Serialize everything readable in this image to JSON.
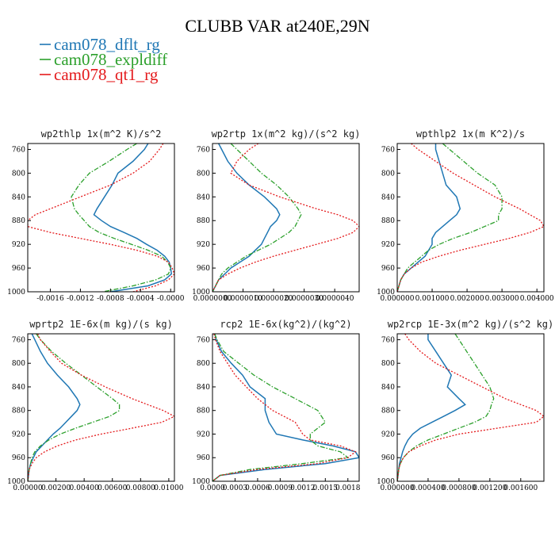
{
  "figure": {
    "title": "CLUBB VAR at240E,29N"
  },
  "legend": [
    {
      "label": "cam078_dflt_rg",
      "color": "#1f77b4",
      "dash": "solid"
    },
    {
      "label": "cam078_expldiff",
      "color": "#2ca02c",
      "dash": "dashdot"
    },
    {
      "label": "cam078_qt1_rg",
      "color": "#e41a1c",
      "dash": "dotted"
    }
  ],
  "chart_data": [
    {
      "type": "line",
      "title": "wp2thlp  1x(m^2 K)/s^2",
      "ylim": [
        1000,
        750
      ],
      "xlim": [
        -0.0019,
        5e-05
      ],
      "yticks": [
        760,
        800,
        840,
        880,
        920,
        960,
        1000
      ],
      "xticks": [
        -0.0016,
        -0.0012,
        -0.0008,
        -0.0004,
        0.0
      ],
      "xtick_labels": [
        "-0.0016",
        "-0.0012",
        "-0.0008",
        "-0.0004",
        "-0.0000"
      ],
      "y": [
        750,
        760,
        780,
        800,
        820,
        840,
        860,
        870,
        880,
        890,
        900,
        910,
        920,
        930,
        940,
        950,
        960,
        970,
        980,
        990,
        1000
      ],
      "series": [
        {
          "name": "cam078_dflt_rg",
          "values": [
            -0.0003,
            -0.00035,
            -0.0005,
            -0.0007,
            -0.00078,
            -0.00088,
            -0.00098,
            -0.00102,
            -0.00092,
            -0.0008,
            -0.00062,
            -0.00045,
            -0.00032,
            -0.00018,
            -8e-05,
            -2e-05,
            0.0,
            1e-05,
            -8e-05,
            -0.0003,
            -0.0008
          ]
        },
        {
          "name": "cam078_expldiff",
          "values": [
            -0.00045,
            -0.00058,
            -0.00082,
            -0.00108,
            -0.00122,
            -0.00132,
            -0.00128,
            -0.00122,
            -0.00115,
            -0.00108,
            -0.00095,
            -0.00075,
            -0.00052,
            -0.0003,
            -0.00012,
            -4e-05,
            0.0,
            -3e-05,
            -0.0002,
            -0.0005,
            -0.0009
          ]
        },
        {
          "name": "cam078_qt1_rg",
          "values": [
            -0.0001,
            -0.00015,
            -0.00028,
            -0.0005,
            -0.0008,
            -0.0012,
            -0.0016,
            -0.0018,
            -0.0019,
            -0.0019,
            -0.0016,
            -0.0012,
            -0.0008,
            -0.00045,
            -0.00018,
            -3e-05,
            2e-05,
            5e-05,
            -3e-05,
            -0.0002,
            -0.0005
          ]
        }
      ]
    },
    {
      "type": "line",
      "title": "wp2rtp  1x(m^2 kg)/(s^2 kg)",
      "ylim": [
        1000,
        750
      ],
      "xlim": [
        0.0,
        4.8e-06
      ],
      "yticks": [
        760,
        800,
        840,
        880,
        920,
        960,
        1000
      ],
      "xticks": [
        0.0,
        1e-06,
        2e-06,
        3e-06,
        4e-06
      ],
      "xtick_labels": [
        "0.0000000",
        "0.0000010",
        "0.0000020",
        "0.0000030",
        "0.0000040"
      ],
      "y": [
        750,
        760,
        780,
        800,
        820,
        840,
        860,
        870,
        880,
        890,
        900,
        910,
        920,
        930,
        940,
        950,
        960,
        970,
        980,
        990,
        1000
      ],
      "series": [
        {
          "name": "cam078_dflt_rg",
          "values": [
            2e-07,
            3e-07,
            5e-07,
            8e-07,
            1.2e-06,
            1.7e-06,
            2.1e-06,
            2.2e-06,
            2.1e-06,
            1.9e-06,
            1.8e-06,
            1.7e-06,
            1.6e-06,
            1.4e-06,
            1.2e-06,
            9e-07,
            6e-07,
            4e-07,
            2e-07,
            1e-07,
            0.0
          ]
        },
        {
          "name": "cam078_expldiff",
          "values": [
            6e-07,
            8e-07,
            1.2e-06,
            1.6e-06,
            2.1e-06,
            2.5e-06,
            2.8e-06,
            2.9e-06,
            2.8e-06,
            2.7e-06,
            2.5e-06,
            2.2e-06,
            1.9e-06,
            1.5e-06,
            1.1e-06,
            8e-07,
            5e-07,
            3e-07,
            2e-07,
            1e-07,
            0.0
          ]
        },
        {
          "name": "cam078_qt1_rg",
          "values": [
            1.5e-06,
            1.2e-06,
            8e-07,
            6e-07,
            1.2e-06,
            2.2e-06,
            3.4e-06,
            4.1e-06,
            4.6e-06,
            4.8e-06,
            4.6e-06,
            4.1e-06,
            3.4e-06,
            2.7e-06,
            2e-06,
            1.4e-06,
            9e-07,
            5e-07,
            2e-07,
            1e-07,
            0.0
          ]
        }
      ]
    },
    {
      "type": "line",
      "title": "wpthlp2  1x(m K^2)/s",
      "ylim": [
        1000,
        750
      ],
      "xlim": [
        0.0,
        0.0042
      ],
      "yticks": [
        760,
        800,
        840,
        880,
        920,
        960,
        1000
      ],
      "xticks": [
        0.0,
        0.001,
        0.002,
        0.003,
        0.004
      ],
      "xtick_labels": [
        "0.000000",
        "0.001000",
        "0.002000",
        "0.003000",
        "0.004000"
      ],
      "y": [
        750,
        760,
        780,
        800,
        820,
        840,
        860,
        870,
        880,
        890,
        900,
        910,
        920,
        930,
        940,
        950,
        960,
        970,
        980,
        990,
        1000
      ],
      "series": [
        {
          "name": "cam078_dflt_rg",
          "values": [
            0.0011,
            0.0011,
            0.0012,
            0.0013,
            0.0014,
            0.0017,
            0.0018,
            0.0017,
            0.0015,
            0.0013,
            0.0011,
            0.001,
            0.001,
            0.0009,
            0.0008,
            0.0006,
            0.0004,
            0.0002,
            0.0001,
            5e-05,
            0.0
          ]
        },
        {
          "name": "cam078_expldiff",
          "values": [
            0.0013,
            0.0015,
            0.0019,
            0.0023,
            0.0028,
            0.003,
            0.003,
            0.0029,
            0.0029,
            0.0025,
            0.0021,
            0.0016,
            0.0012,
            0.0009,
            0.0007,
            0.0005,
            0.0003,
            0.0002,
            0.0001,
            5e-05,
            0.0
          ]
        },
        {
          "name": "cam078_qt1_rg",
          "values": [
            0.0004,
            0.0006,
            0.0011,
            0.0016,
            0.0022,
            0.0028,
            0.0035,
            0.0038,
            0.0041,
            0.0042,
            0.0038,
            0.0032,
            0.0025,
            0.0018,
            0.0012,
            0.0007,
            0.0004,
            0.0002,
            0.0001,
            5e-05,
            0.0
          ]
        }
      ]
    },
    {
      "type": "line",
      "title": "wprtp2  1E-6x(m kg)/(s kg)",
      "ylim": [
        1000,
        750
      ],
      "xlim": [
        0.0,
        0.0104
      ],
      "yticks": [
        760,
        800,
        840,
        880,
        920,
        960,
        1000
      ],
      "xticks": [
        0.0,
        0.002,
        0.004,
        0.006,
        0.008,
        0.01
      ],
      "xtick_labels": [
        "0.00000",
        "0.00200",
        "0.00400",
        "0.00600",
        "0.00800",
        "0.01000"
      ],
      "y": [
        750,
        760,
        780,
        800,
        820,
        840,
        860,
        870,
        880,
        890,
        900,
        910,
        920,
        930,
        940,
        950,
        960,
        970,
        980,
        990,
        1000
      ],
      "series": [
        {
          "name": "cam078_dflt_rg",
          "values": [
            0.0003,
            0.0005,
            0.0009,
            0.0014,
            0.0021,
            0.0029,
            0.0035,
            0.0037,
            0.0035,
            0.0031,
            0.0027,
            0.0023,
            0.0018,
            0.0014,
            0.001,
            0.0006,
            0.0004,
            0.0002,
            0.0001,
            5e-05,
            0.0
          ]
        },
        {
          "name": "cam078_expldiff",
          "values": [
            0.0006,
            0.0009,
            0.0017,
            0.0027,
            0.0038,
            0.0049,
            0.006,
            0.0065,
            0.0065,
            0.0058,
            0.0046,
            0.0034,
            0.0023,
            0.0015,
            0.0009,
            0.0005,
            0.0003,
            0.0002,
            0.0001,
            5e-05,
            0.0
          ]
        },
        {
          "name": "cam078_qt1_rg",
          "values": [
            0.0007,
            0.0009,
            0.0016,
            0.0024,
            0.0038,
            0.0055,
            0.0074,
            0.0085,
            0.0096,
            0.0104,
            0.0095,
            0.0074,
            0.0052,
            0.0034,
            0.0021,
            0.0012,
            0.0006,
            0.0003,
            0.0001,
            5e-05,
            0.0
          ]
        }
      ]
    },
    {
      "type": "line",
      "title": "rcp2  1E-6x(kg^2)/(kg^2)",
      "ylim": [
        1000,
        750
      ],
      "xlim": [
        0.0,
        0.00195
      ],
      "yticks": [
        760,
        800,
        840,
        880,
        920,
        960,
        1000
      ],
      "xticks": [
        0.0,
        0.0003,
        0.0006,
        0.0009,
        0.0012,
        0.0015,
        0.0018
      ],
      "xtick_labels": [
        "0.0000",
        "0.0003",
        "0.0006",
        "0.0009",
        "0.0012",
        "0.0015",
        "0.0018"
      ],
      "y": [
        750,
        760,
        780,
        800,
        820,
        840,
        860,
        880,
        900,
        920,
        930,
        940,
        950,
        960,
        970,
        980,
        990,
        1000
      ],
      "series": [
        {
          "name": "cam078_dflt_rg",
          "values": [
            3e-05,
            5e-05,
            0.00012,
            0.00025,
            0.0004,
            0.0005,
            0.0007,
            0.0007,
            0.00075,
            0.00085,
            0.0012,
            0.0016,
            0.0019,
            0.00195,
            0.0015,
            0.0007,
            0.0001,
            0.0
          ]
        },
        {
          "name": "cam078_expldiff",
          "values": [
            3e-05,
            6e-05,
            0.00015,
            0.00035,
            0.00055,
            0.0008,
            0.0011,
            0.0014,
            0.0015,
            0.0013,
            0.0013,
            0.0014,
            0.0017,
            0.0018,
            0.0012,
            0.0005,
            0.0001,
            0.0
          ]
        },
        {
          "name": "cam078_qt1_rg",
          "values": [
            2e-05,
            4e-05,
            0.0001,
            0.0002,
            0.0003,
            0.00045,
            0.0006,
            0.0008,
            0.0011,
            0.0012,
            0.0013,
            0.0017,
            0.0019,
            0.0018,
            0.0014,
            0.0006,
            0.0001,
            0.0
          ]
        }
      ]
    },
    {
      "type": "line",
      "title": "wp2rcp  1E-3x(m^2 kg)/(s^2 kg)",
      "ylim": [
        1000,
        750
      ],
      "xlim": [
        0.0,
        0.0019
      ],
      "yticks": [
        760,
        800,
        840,
        880,
        920,
        960,
        1000
      ],
      "xticks": [
        0.0,
        0.0004,
        0.0008,
        0.0012,
        0.0016
      ],
      "xtick_labels": [
        "0.000000",
        "0.000400",
        "0.000800",
        "0.001200",
        "0.001600"
      ],
      "y": [
        750,
        760,
        780,
        800,
        820,
        840,
        860,
        870,
        880,
        890,
        900,
        910,
        920,
        930,
        940,
        950,
        960,
        970,
        980,
        990,
        1000
      ],
      "series": [
        {
          "name": "cam078_dflt_rg",
          "values": [
            0.0004,
            0.0004,
            0.0005,
            0.0006,
            0.0007,
            0.00065,
            0.0008,
            0.00088,
            0.00075,
            0.0006,
            0.00045,
            0.0003,
            0.0002,
            0.00014,
            0.0001,
            7e-05,
            5e-05,
            3e-05,
            2e-05,
            1e-05,
            0.0
          ]
        },
        {
          "name": "cam078_expldiff",
          "values": [
            0.00075,
            0.0008,
            0.0009,
            0.001,
            0.0011,
            0.0012,
            0.00125,
            0.00122,
            0.0012,
            0.00115,
            0.001,
            0.0008,
            0.0006,
            0.0004,
            0.00025,
            0.00015,
            8e-05,
            4e-05,
            2e-05,
            1e-05,
            0.0
          ]
        },
        {
          "name": "cam078_qt1_rg",
          "values": [
            0.0001,
            0.00015,
            0.0003,
            0.0005,
            0.0008,
            0.0011,
            0.0014,
            0.0016,
            0.0018,
            0.0019,
            0.0018,
            0.0013,
            0.0008,
            0.0005,
            0.0003,
            0.00015,
            8e-05,
            4e-05,
            2e-05,
            1e-05,
            0.0
          ]
        }
      ]
    }
  ]
}
